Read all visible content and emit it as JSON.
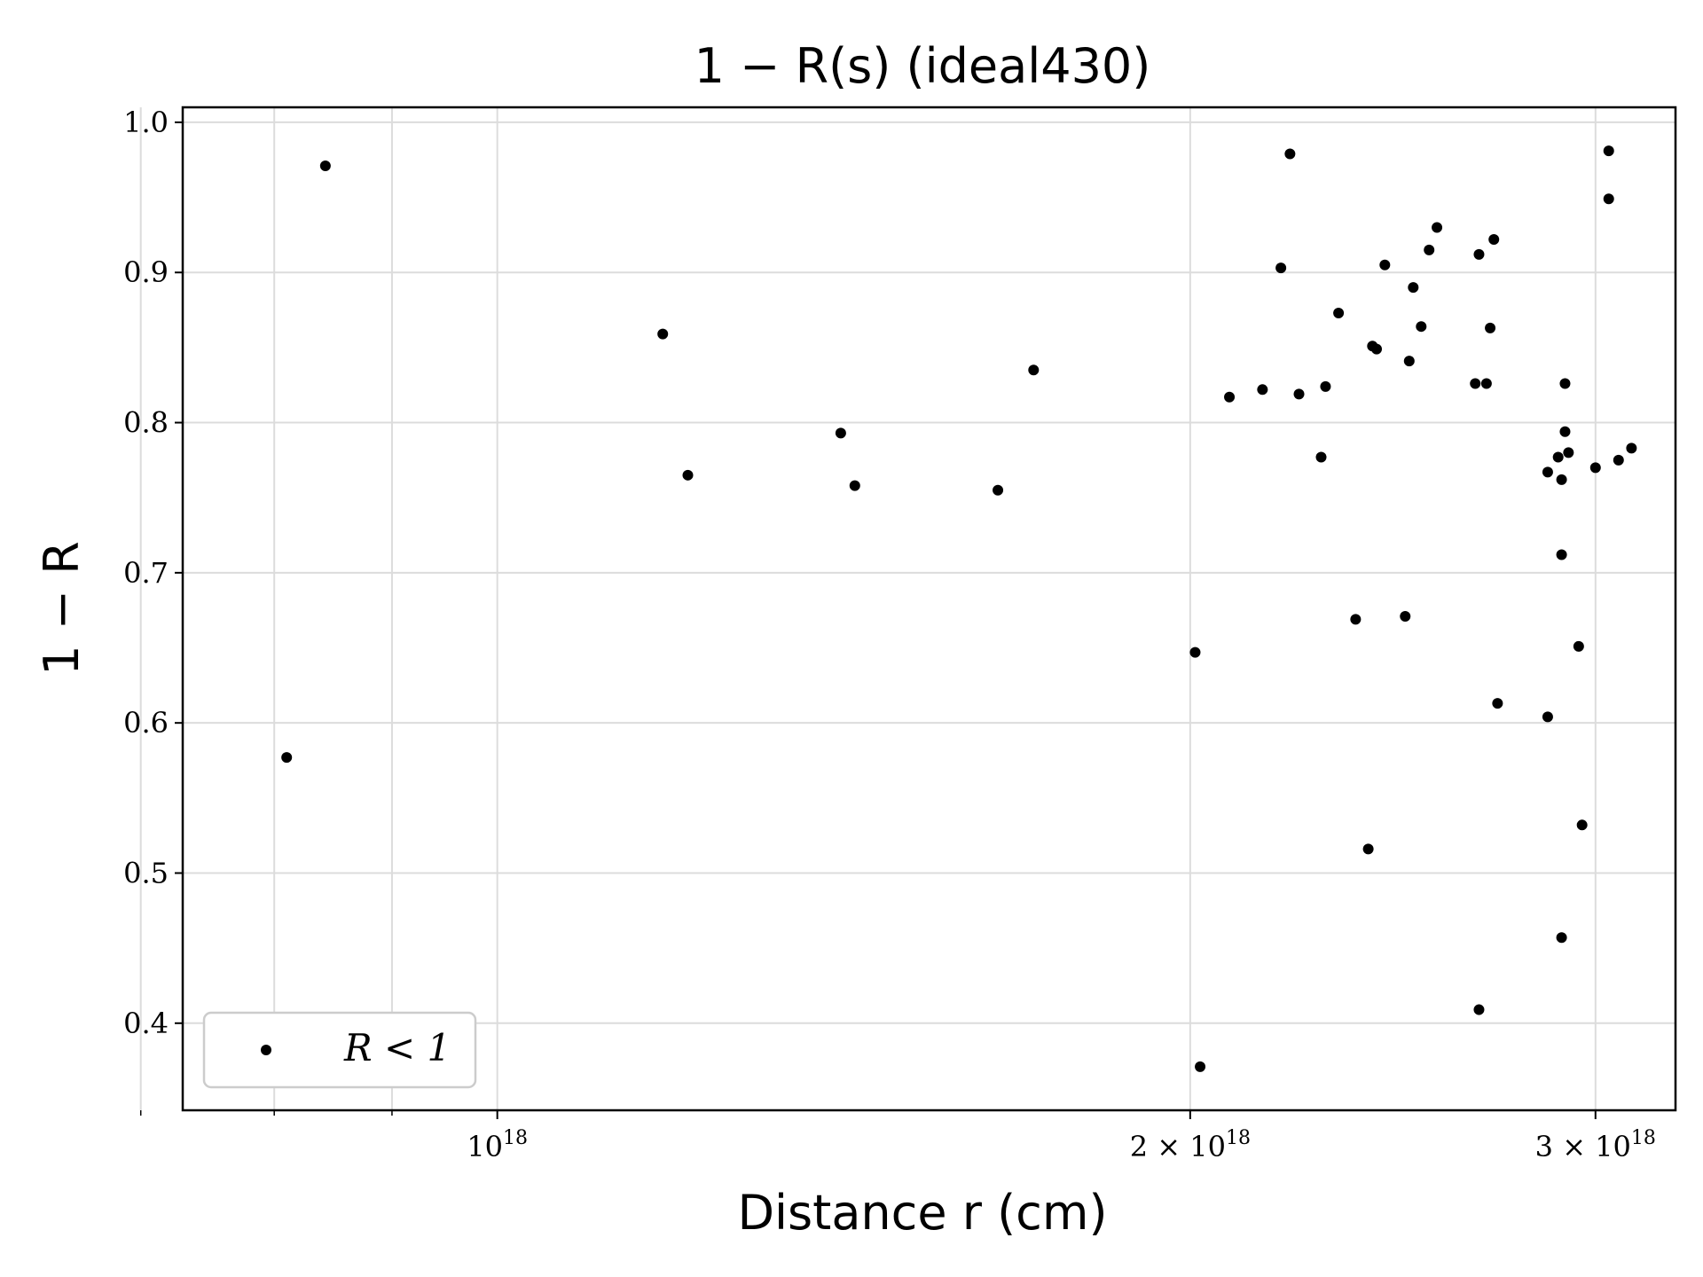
{
  "chart_data": {
    "type": "scatter",
    "title": "1 − R(s) (ideal430)",
    "xlabel": "Distance r (cm)",
    "ylabel": "1 − R",
    "xscale": "log",
    "xlim": [
      7.3e+17,
      3.25e+18
    ],
    "ylim": [
      0.342,
      1.01
    ],
    "grid": true,
    "legend_position": "lower-left",
    "x_tick_labels": [
      {
        "value": 1e+18,
        "base": "10",
        "exp": "18"
      },
      {
        "value": 2e+18,
        "base": "2 × 10",
        "exp": "18"
      },
      {
        "value": 3e+18,
        "base": "3 × 10",
        "exp": "18"
      }
    ],
    "x_minor_ticks": [
      7e+17,
      8e+17,
      9e+17
    ],
    "y_ticks": [
      0.4,
      0.5,
      0.6,
      0.7,
      0.8,
      0.9,
      1.0
    ],
    "y_tick_labels": [
      "0.4",
      "0.5",
      "0.6",
      "0.7",
      "0.8",
      "0.9",
      "1.0"
    ],
    "series": [
      {
        "name": "R < 1",
        "color": "#000000",
        "points": [
          [
            8.1e+17,
            0.577
          ],
          [
            8.42e+17,
            0.971
          ],
          [
            1.18e+18,
            0.859
          ],
          [
            1.21e+18,
            0.765
          ],
          [
            1.41e+18,
            0.793
          ],
          [
            1.43e+18,
            0.758
          ],
          [
            1.65e+18,
            0.755
          ],
          [
            1.71e+18,
            0.835
          ],
          [
            2.01e+18,
            0.647
          ],
          [
            2.02e+18,
            0.371
          ],
          [
            2.08e+18,
            0.817
          ],
          [
            2.15e+18,
            0.822
          ],
          [
            2.19e+18,
            0.903
          ],
          [
            2.21e+18,
            0.979
          ],
          [
            2.23e+18,
            0.819
          ],
          [
            2.28e+18,
            0.777
          ],
          [
            2.29e+18,
            0.824
          ],
          [
            2.32e+18,
            0.873
          ],
          [
            2.36e+18,
            0.669
          ],
          [
            2.39e+18,
            0.516
          ],
          [
            2.4e+18,
            0.851
          ],
          [
            2.41e+18,
            0.849
          ],
          [
            2.43e+18,
            0.905
          ],
          [
            2.48e+18,
            0.671
          ],
          [
            2.49e+18,
            0.841
          ],
          [
            2.5e+18,
            0.89
          ],
          [
            2.52e+18,
            0.864
          ],
          [
            2.54e+18,
            0.915
          ],
          [
            2.56e+18,
            0.93
          ],
          [
            2.66e+18,
            0.826
          ],
          [
            2.67e+18,
            0.912
          ],
          [
            2.67e+18,
            0.409
          ],
          [
            2.69e+18,
            0.826
          ],
          [
            2.7e+18,
            0.863
          ],
          [
            2.71e+18,
            0.922
          ],
          [
            2.72e+18,
            0.613
          ],
          [
            2.86e+18,
            0.767
          ],
          [
            2.86e+18,
            0.604
          ],
          [
            2.89e+18,
            0.777
          ],
          [
            2.9e+18,
            0.457
          ],
          [
            2.9e+18,
            0.762
          ],
          [
            2.9e+18,
            0.712
          ],
          [
            2.91e+18,
            0.826
          ],
          [
            2.91e+18,
            0.794
          ],
          [
            2.92e+18,
            0.78
          ],
          [
            2.95e+18,
            0.651
          ],
          [
            2.96e+18,
            0.532
          ],
          [
            3e+18,
            0.77
          ],
          [
            3.04e+18,
            0.981
          ],
          [
            3.04e+18,
            0.949
          ],
          [
            3.07e+18,
            0.775
          ],
          [
            3.11e+18,
            0.783
          ]
        ]
      }
    ]
  }
}
